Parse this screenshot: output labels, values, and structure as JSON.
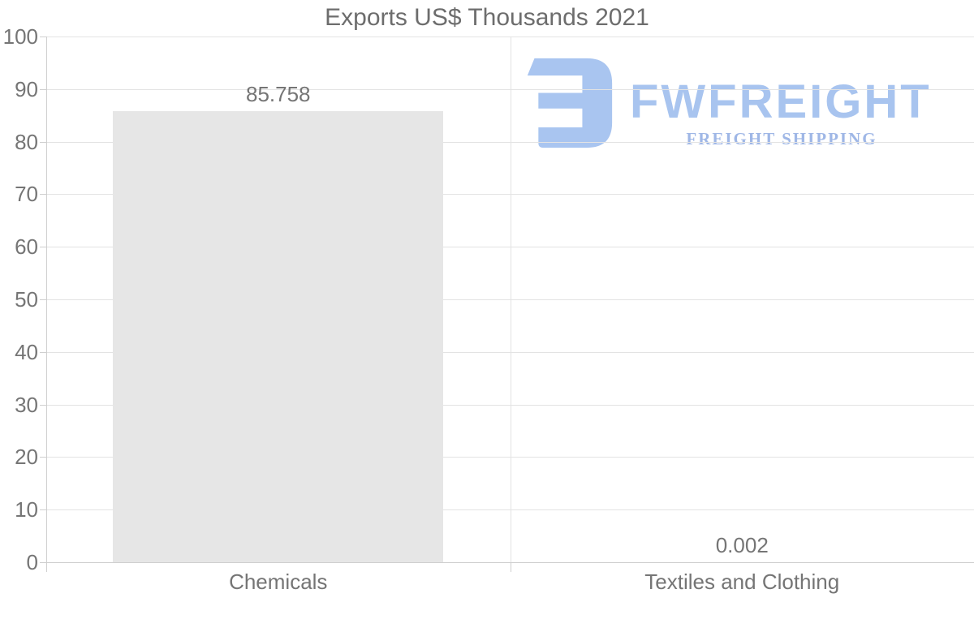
{
  "watermark": {
    "brand": "FWFREIGHT",
    "tagline": "FREIGHT SHIPPING",
    "icon": "fwfreight-logomark",
    "brand_color": "#a8c4ef",
    "tagline_color": "#9fb7e6",
    "icon_color": "#a9c5f0"
  },
  "chart_data": {
    "type": "bar",
    "title": "Exports US$ Thousands 2021",
    "categories": [
      "Chemicals",
      "Textiles and Clothing"
    ],
    "values": [
      85.758,
      0.002
    ],
    "value_labels": [
      "85.758",
      "0.002"
    ],
    "xlabel": "",
    "ylabel": "",
    "ylim": [
      0,
      100
    ],
    "yticks": [
      0,
      10,
      20,
      30,
      40,
      50,
      60,
      70,
      80,
      90,
      100
    ],
    "grid": true,
    "legend": "none",
    "bar_color": "#e6e6e6",
    "grid_color": "#e3e3e3",
    "axis_color": "#cfcfcf",
    "text_color": "#757575"
  }
}
